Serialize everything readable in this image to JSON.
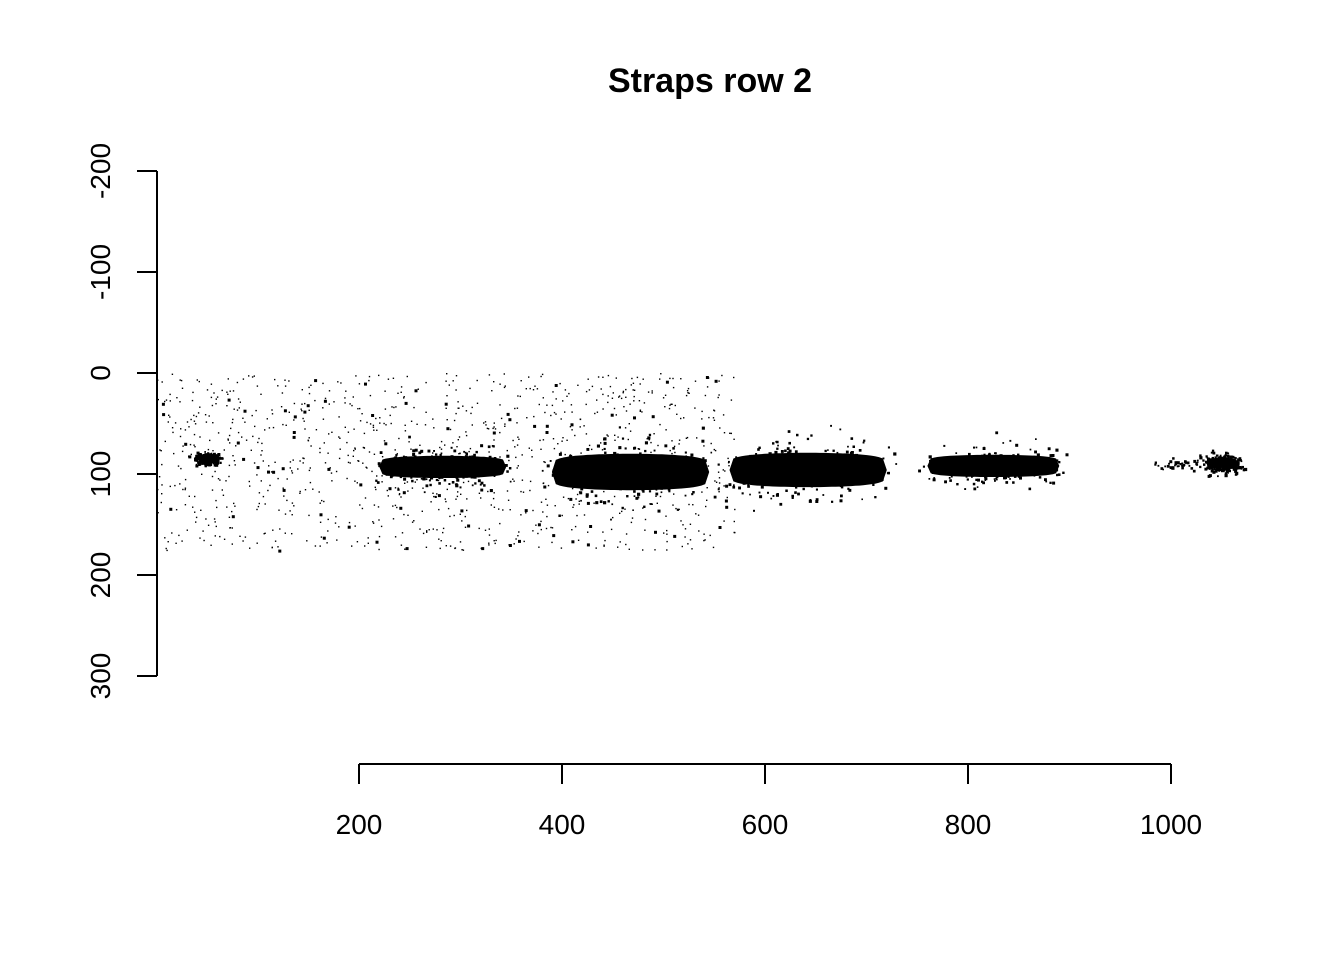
{
  "chart_data": {
    "type": "scatter",
    "title": "Straps row 2",
    "xlabel": "",
    "ylabel": "",
    "x_axis": {
      "range": [
        200,
        1000
      ],
      "ticks": [
        200,
        400,
        600,
        800,
        1000
      ],
      "tick_labels": [
        "200",
        "400",
        "600",
        "800",
        "1000"
      ]
    },
    "y_axis": {
      "range": [
        -200,
        300
      ],
      "reversed": true,
      "ticks": [
        -200,
        -100,
        0,
        100,
        200,
        300
      ],
      "tick_labels": [
        "-200",
        "-100",
        "0",
        "100",
        "200",
        "300"
      ]
    },
    "x_extent": [
      0,
      1065
    ],
    "grid": false,
    "legend": "none",
    "point_color": "#000000",
    "clusters": [
      {
        "x_range": [
          220,
          345
        ],
        "y_center": 93,
        "y_halfwidth": 11,
        "density": "dense"
      },
      {
        "x_range": [
          390,
          545
        ],
        "y_center": 98,
        "y_halfwidth": 18,
        "density": "dense"
      },
      {
        "x_range": [
          565,
          720
        ],
        "y_center": 96,
        "y_halfwidth": 17,
        "density": "dense"
      },
      {
        "x_range": [
          760,
          890
        ],
        "y_center": 92,
        "y_halfwidth": 11,
        "density": "dense"
      },
      {
        "x_range": [
          1035,
          1065
        ],
        "y_center": 89,
        "y_halfwidth": 5,
        "density": "dense"
      },
      {
        "x_range": [
          980,
          1030
        ],
        "y_center": 90,
        "y_halfwidth": 4,
        "density": "sparse"
      },
      {
        "x_range": [
          40,
          60
        ],
        "y_center": 84,
        "y_halfwidth": 3,
        "density": "dense"
      }
    ],
    "noise_region": {
      "x_range": [
        0,
        570
      ],
      "y_range": [
        0,
        175
      ],
      "density": "sparse"
    }
  }
}
